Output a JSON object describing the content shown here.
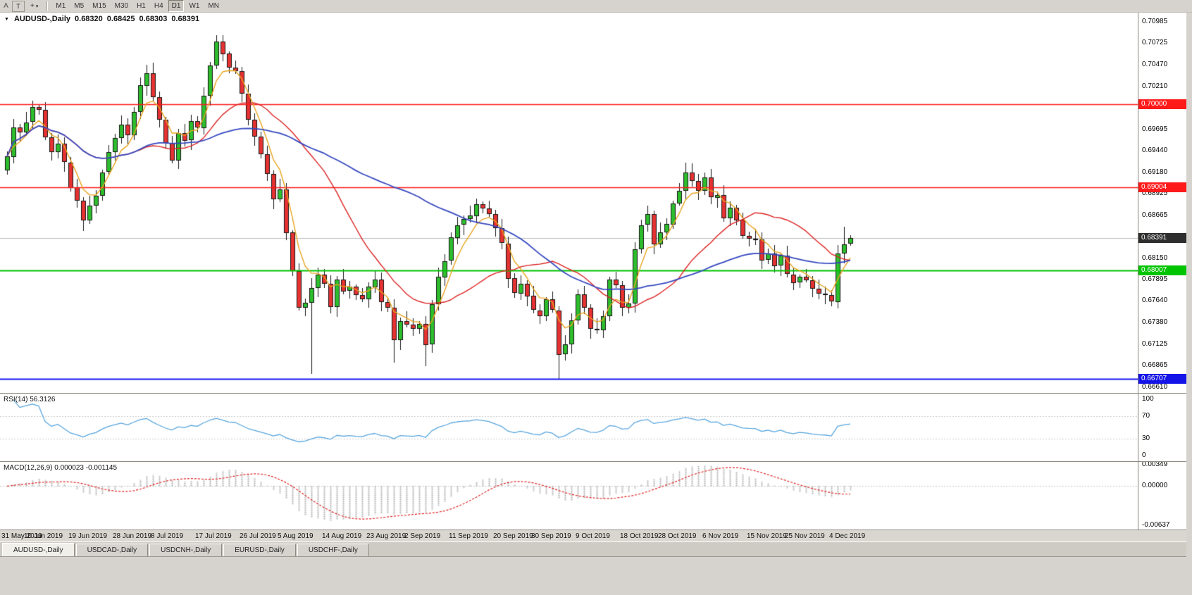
{
  "toolbar": {
    "left_buttons": [
      {
        "label": "A"
      },
      {
        "label": "T"
      }
    ],
    "cursor_button": {
      "icon_label": "+",
      "dropdown": "▾"
    },
    "timeframes": [
      {
        "label": "M1",
        "active": false
      },
      {
        "label": "M5",
        "active": false
      },
      {
        "label": "M15",
        "active": false
      },
      {
        "label": "M30",
        "active": false
      },
      {
        "label": "H1",
        "active": false
      },
      {
        "label": "H4",
        "active": false
      },
      {
        "label": "D1",
        "active": true
      },
      {
        "label": "W1",
        "active": false
      },
      {
        "label": "MN",
        "active": false
      }
    ]
  },
  "chart": {
    "title": {
      "collapse_icon": "▼",
      "symbol": "AUDUSD-,Daily",
      "open": "0.68320",
      "high": "0.68425",
      "low": "0.68303",
      "close": "0.68391"
    },
    "price_axis_ticks": [
      "0.70985",
      "0.70725",
      "0.70470",
      "0.70210",
      "0.69955",
      "0.69695",
      "0.69440",
      "0.69180",
      "0.68925",
      "0.68665",
      "0.68405",
      "0.68150",
      "0.67895",
      "0.67640",
      "0.67380",
      "0.67125",
      "0.66865",
      "0.66610"
    ],
    "ylim": [
      0.6654,
      0.711
    ],
    "levels": [
      {
        "label": "0.70000",
        "value": 0.7,
        "color": "#FF1A1A",
        "width": 1.5
      },
      {
        "label": "0.69004",
        "value": 0.69004,
        "color": "#FF1A1A",
        "width": 1.5
      },
      {
        "label": "0.68007",
        "value": 0.68007,
        "color": "#00C400",
        "width": 2
      },
      {
        "label": "0.66707",
        "value": 0.66707,
        "color": "#1414E8",
        "width": 2
      }
    ],
    "current_price": {
      "label": "0.68391",
      "value": 0.68391,
      "badge_bg": "#2E2E2E",
      "line_color": "#BCBCBC"
    }
  },
  "chart_data": {
    "type": "candlestick",
    "symbol": "AUDUSD",
    "timeframe": "Daily",
    "first_open": 0.692,
    "closes": [
      0.6937,
      0.6972,
      0.6966,
      0.6978,
      0.6996,
      0.6993,
      0.696,
      0.6942,
      0.6952,
      0.693,
      0.69,
      0.6884,
      0.686,
      0.6878,
      0.689,
      0.6918,
      0.6942,
      0.6959,
      0.6975,
      0.6962,
      0.699,
      0.7022,
      0.7037,
      0.7008,
      0.6981,
      0.6953,
      0.6932,
      0.6965,
      0.6956,
      0.6979,
      0.6971,
      0.701,
      0.7046,
      0.7075,
      0.706,
      0.7043,
      0.7039,
      0.7012,
      0.6981,
      0.6961,
      0.694,
      0.6916,
      0.6886,
      0.6898,
      0.6846,
      0.68,
      0.6756,
      0.6762,
      0.678,
      0.6796,
      0.6785,
      0.6757,
      0.679,
      0.6776,
      0.6781,
      0.6771,
      0.6766,
      0.6781,
      0.679,
      0.6763,
      0.6756,
      0.6717,
      0.674,
      0.6736,
      0.6731,
      0.6737,
      0.6712,
      0.676,
      0.6793,
      0.6812,
      0.684,
      0.6855,
      0.6862,
      0.6866,
      0.688,
      0.6875,
      0.6868,
      0.6851,
      0.6833,
      0.6791,
      0.6773,
      0.6785,
      0.677,
      0.6753,
      0.6746,
      0.6766,
      0.6753,
      0.67,
      0.6712,
      0.6741,
      0.6772,
      0.6756,
      0.6731,
      0.6729,
      0.6746,
      0.679,
      0.6783,
      0.6756,
      0.6761,
      0.6826,
      0.6855,
      0.6868,
      0.6832,
      0.6846,
      0.6856,
      0.6881,
      0.6896,
      0.6918,
      0.6908,
      0.6896,
      0.6912,
      0.6888,
      0.6891,
      0.6863,
      0.6876,
      0.6861,
      0.6842,
      0.6839,
      0.6838,
      0.6813,
      0.6821,
      0.6806,
      0.6818,
      0.6796,
      0.6786,
      0.6793,
      0.6789,
      0.6779,
      0.6773,
      0.6771,
      0.6763,
      0.6821,
      0.6832,
      0.68391
    ],
    "wick_pattern_up": [
      6,
      10,
      4,
      12,
      7,
      3,
      9,
      5,
      11,
      8
    ],
    "wick_pattern_down": [
      5,
      8,
      12,
      4,
      9,
      6,
      3,
      10,
      7,
      11
    ],
    "wick_overrides": {
      "4": {
        "high": 0.7004
      },
      "12": {
        "low": 0.6848
      },
      "22": {
        "high": 0.7047
      },
      "33": {
        "high": 0.7082
      },
      "48": {
        "low": 0.6677
      },
      "61": {
        "low": 0.669
      },
      "66": {
        "low": 0.6686
      },
      "87": {
        "low": 0.6671
      },
      "107": {
        "high": 0.693
      },
      "132": {
        "high": 0.6853
      },
      "133": {
        "open": 0.6832,
        "high": 0.68425,
        "low": 0.68303
      }
    },
    "candle_colors": {
      "bull_fill": "#2DBE2D",
      "bear_fill": "#E63232",
      "outline": "#151515"
    },
    "moving_averages": [
      {
        "period": 5,
        "method": "ema",
        "color": "#E8A41E",
        "width": 1.4
      },
      {
        "period": 20,
        "method": "sma",
        "color": "#DD2222",
        "width": 1.4
      },
      {
        "period": 50,
        "method": "sma",
        "color": "#3548C0",
        "width": 1.8
      }
    ],
    "date_labels": [
      {
        "idx": 0,
        "label": "31 May 2019"
      },
      {
        "idx": 6,
        "label": "10 Jun 2019"
      },
      {
        "idx": 13,
        "label": "19 Jun 2019"
      },
      {
        "idx": 20,
        "label": "28 Jun 2019"
      },
      {
        "idx": 26,
        "label": "8 Jul 2019"
      },
      {
        "idx": 33,
        "label": "17 Jul 2019"
      },
      {
        "idx": 40,
        "label": "26 Jul 2019"
      },
      {
        "idx": 46,
        "label": "5 Aug 2019"
      },
      {
        "idx": 53,
        "label": "14 Aug 2019"
      },
      {
        "idx": 60,
        "label": "23 Aug 2019"
      },
      {
        "idx": 66,
        "label": "2 Sep 2019"
      },
      {
        "idx": 73,
        "label": "11 Sep 2019"
      },
      {
        "idx": 80,
        "label": "20 Sep 2019"
      },
      {
        "idx": 86,
        "label": "30 Sep 2019"
      },
      {
        "idx": 93,
        "label": "9 Oct 2019"
      },
      {
        "idx": 100,
        "label": "18 Oct 2019"
      },
      {
        "idx": 106,
        "label": "28 Oct 2019"
      },
      {
        "idx": 113,
        "label": "6 Nov 2019"
      },
      {
        "idx": 120,
        "label": "15 Nov 2019"
      },
      {
        "idx": 126,
        "label": "25 Nov 2019"
      },
      {
        "idx": 133,
        "label": "4 Dec 2019"
      }
    ]
  },
  "rsi": {
    "label": "RSI(14) 56.3126",
    "period": 14,
    "value": "56.3126",
    "axis_ticks": [
      "100",
      "70",
      "30",
      "0"
    ],
    "level_lines": [
      70,
      30
    ],
    "range": [
      0,
      100
    ],
    "line_color": "#58A5DE"
  },
  "macd": {
    "label": "MACD(12,26,9) 0.000023 -0.001145",
    "fast": 12,
    "slow": 26,
    "signal": 9,
    "macd_value": "0.000023",
    "signal_value": "-0.001145",
    "axis_ticks": [
      "0.00349",
      "0.00000",
      "-0.00637"
    ],
    "ylim": [
      -0.00637,
      0.00349
    ],
    "histogram_color": "#B4B4B4",
    "signal_color": "#E02020"
  },
  "tabs": [
    {
      "label": "AUDUSD-,Daily",
      "active": true
    },
    {
      "label": "USDCAD-,Daily",
      "active": false
    },
    {
      "label": "USDCNH-,Daily",
      "active": false
    },
    {
      "label": "EURUSD-,Daily",
      "active": false
    },
    {
      "label": "USDCHF-,Daily",
      "active": false
    }
  ]
}
